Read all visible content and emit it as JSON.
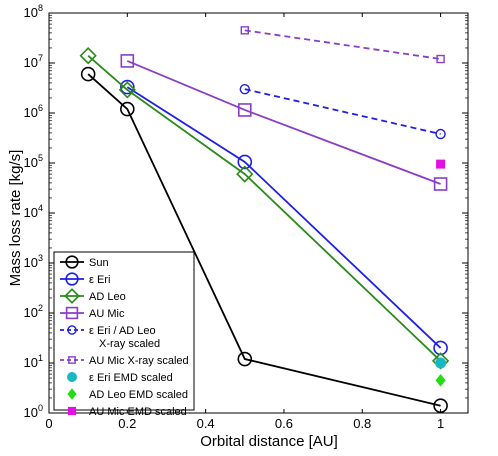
{
  "chart_data": {
    "type": "line",
    "xlabel": "Orbital distance [AU]",
    "ylabel": "Mass loss rate [kg/s]",
    "xlim": [
      0,
      1.07
    ],
    "ylim_log10": [
      0,
      8
    ],
    "y_scale": "log",
    "grid": "none",
    "legend_placement": "lower-left",
    "x_ticks": [
      "0",
      "0.2",
      "0.4",
      "0.6",
      "0.8",
      "1"
    ],
    "x_tick_values": [
      0,
      0.2,
      0.4,
      0.6,
      0.8,
      1
    ],
    "y_tick_exponents": [
      0,
      1,
      2,
      3,
      4,
      5,
      6,
      7,
      8
    ],
    "y_tick_base": "10",
    "series": [
      {
        "name": "Sun",
        "color": "#000000",
        "marker": "circle-open",
        "line": "solid",
        "x": [
          0.1,
          0.2,
          0.5,
          1.0
        ],
        "y": [
          6000000,
          1200000,
          12,
          1.4
        ]
      },
      {
        "name": "ε Eri",
        "color": "#1f1fe6",
        "marker": "circle-open",
        "line": "solid",
        "x": [
          0.2,
          0.5,
          1.0
        ],
        "y": [
          3300000,
          105000,
          20
        ]
      },
      {
        "name": "AD Leo",
        "color": "#2a8a1a",
        "marker": "diamond-open",
        "line": "solid",
        "x": [
          0.1,
          0.2,
          0.5,
          1.0
        ],
        "y": [
          14000000,
          2900000,
          60000,
          11
        ]
      },
      {
        "name": "AU Mic",
        "color": "#8a3dc6",
        "marker": "square-open",
        "line": "solid",
        "x": [
          0.2,
          0.5,
          1.0
        ],
        "y": [
          11000000,
          1150000,
          38000
        ]
      },
      {
        "name": "ε Eri / AD Leo",
        "name_line2": "X-ray scaled",
        "color": "#1f1fe6",
        "marker": "circle-open-small",
        "line": "dashed",
        "x": [
          0.5,
          1.0
        ],
        "y": [
          3000000,
          380000
        ]
      },
      {
        "name": "AU Mic X-ray scaled",
        "color": "#8a3dc6",
        "marker": "square-open-small",
        "line": "dashed",
        "x": [
          0.5,
          1.0
        ],
        "y": [
          45000000,
          12000000
        ]
      },
      {
        "name": "ε Eri EMD scaled",
        "color": "#17b8c4",
        "marker": "circle-filled",
        "line": "none",
        "x": [
          1.0
        ],
        "y": [
          10
        ]
      },
      {
        "name": "AD Leo EMD scaled",
        "color": "#22dd11",
        "marker": "diamond-filled",
        "line": "none",
        "x": [
          1.0
        ],
        "y": [
          4.5
        ]
      },
      {
        "name": "AU Mic EMD scaled",
        "color": "#e40fe4",
        "marker": "square-filled",
        "line": "none",
        "x": [
          1.0
        ],
        "y": [
          95000
        ]
      }
    ]
  }
}
